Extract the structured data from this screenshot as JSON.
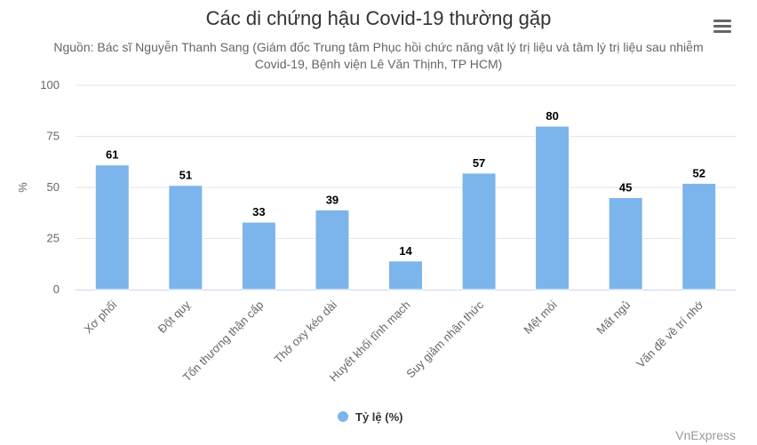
{
  "chart_data": {
    "type": "bar",
    "title": "Các di chứng hậu Covid-19 thường gặp",
    "subtitle": "Nguồn: Bác sĩ Nguyễn Thanh Sang (Giám đốc Trung tâm Phục hồi chức năng vật lý trị liệu và tâm lý trị liệu sau nhiễm Covid-19, Bệnh viện Lê Văn Thịnh, TP HCM)",
    "categories": [
      "Xơ phổi",
      "Đột quỵ",
      "Tổn thương thận cấp",
      "Thở oxy kéo dài",
      "Huyết khối tĩnh mạch",
      "Suy giảm nhận thức",
      "Mệt mỏi",
      "Mất ngủ",
      "Vấn đề về trí nhớ"
    ],
    "series": [
      {
        "name": "Tỷ lệ (%)",
        "values": [
          61,
          51,
          33,
          39,
          14,
          57,
          80,
          45,
          52
        ],
        "color": "#7cb5ec"
      }
    ],
    "ylabel": "%",
    "xlabel": "",
    "ylim": [
      0,
      100
    ],
    "yticks": [
      0,
      25,
      50,
      75,
      100
    ],
    "grid": true,
    "legend": "bottom-center",
    "data_labels": true
  },
  "credit": "VnExpress",
  "menu_icon": "hamburger-menu-icon"
}
